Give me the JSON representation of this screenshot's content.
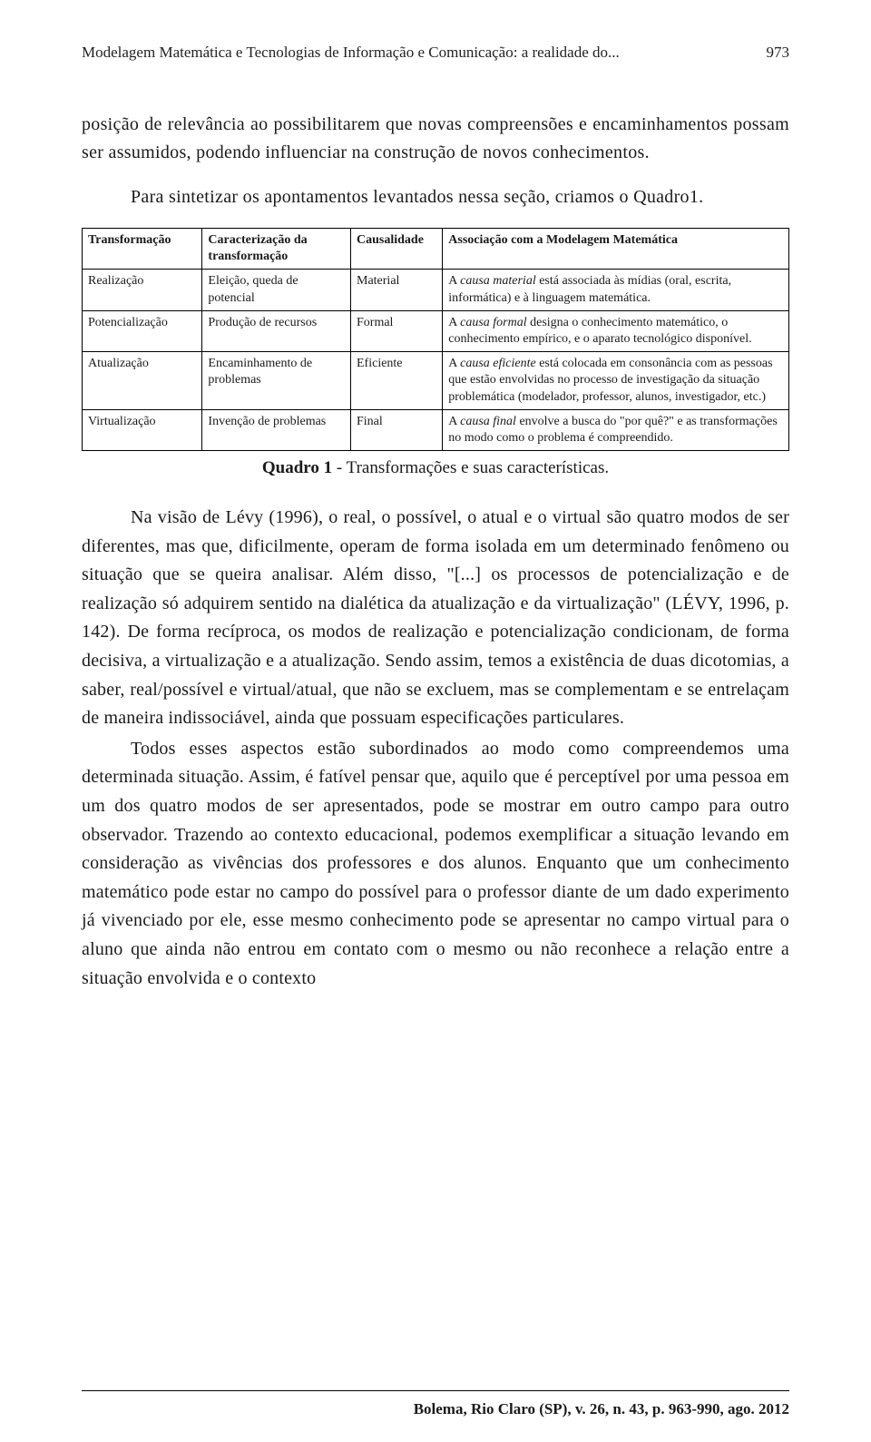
{
  "header": {
    "running_title": "Modelagem Matemática e Tecnologias de Informação e Comunicação: a realidade do...",
    "page_number": "973"
  },
  "intro": {
    "p1a": "posição de relevância ao possibilitarem que novas compreensões e encaminhamentos possam ser assumidos, podendo influenciar na construção de novos conhecimentos.",
    "p1b": "Para sintetizar os apontamentos levantados nessa seção, criamos o Quadro1."
  },
  "table": {
    "headers": [
      "Transformação",
      "Caracterização da transformação",
      "Causalidade",
      "Associação com a Modelagem Matemática"
    ],
    "rows": [
      {
        "c0": "Realização",
        "c1": "Eleição, queda de potencial",
        "c2": "Material",
        "c3_pre": "A ",
        "c3_em": "causa material",
        "c3_post": " está associada às mídias (oral, escrita, informática) e à linguagem matemática."
      },
      {
        "c0": "Potencialização",
        "c1": "Produção de recursos",
        "c2": "Formal",
        "c3_pre": "A ",
        "c3_em": "causa formal",
        "c3_post": " designa o conhecimento matemático, o conhecimento empírico, e o aparato tecnológico disponível."
      },
      {
        "c0": "Atualização",
        "c1": "Encaminhamento de problemas",
        "c2": "Eficiente",
        "c3_pre": "A ",
        "c3_em": "causa eficiente",
        "c3_post": " está colocada em consonância com as pessoas que estão envolvidas no processo de investigação da situação problemática (modelador, professor, alunos, investigador, etc.)"
      },
      {
        "c0": "Virtualização",
        "c1": "Invenção de problemas",
        "c2": "Final",
        "c3_pre": "A ",
        "c3_em": "causa final",
        "c3_post": " envolve a busca do \"por quê?\" e as transformações no modo como o problema é compreendido."
      }
    ],
    "caption_bold": "Quadro 1",
    "caption_rest": " - Transformações e suas características."
  },
  "body": {
    "p1": "Na visão de Lévy (1996), o real, o possível, o atual e o virtual são quatro modos de ser diferentes, mas que, dificilmente, operam de forma isolada em um determinado fenômeno ou situação que se queira analisar. Além disso, \"[...] os processos de potencialização e de realização só adquirem sentido na dialética da atualização e da virtualização\" (LÉVY, 1996, p. 142). De forma recíproca, os modos de realização e potencialização condicionam, de forma decisiva, a virtualização e a atualização. Sendo assim, temos a existência de duas dicotomias, a saber, real/possível e virtual/atual, que não se excluem, mas se complementam e se entrelaçam de maneira indissociável, ainda que possuam especificações particulares.",
    "p2": "Todos esses aspectos estão subordinados ao modo como compreendemos uma determinada situação. Assim, é fatível pensar que, aquilo que é perceptível por uma pessoa em um dos quatro modos de ser apresentados, pode se mostrar em outro campo para outro observador. Trazendo ao contexto educacional, podemos exemplificar a situação levando em consideração as vivências dos professores e dos alunos. Enquanto que um conhecimento matemático pode estar no campo do possível para o professor diante de um dado experimento já vivenciado por ele, esse mesmo conhecimento pode se apresentar no campo virtual para o aluno que ainda não entrou em contato com o mesmo ou não reconhece a relação entre a situação envolvida e o contexto"
  },
  "footer": {
    "citation": "Bolema, Rio Claro (SP), v. 26, n. 43, p. 963-990, ago. 2012"
  },
  "col_widths": [
    "17%",
    "21%",
    "13%",
    "49%"
  ]
}
